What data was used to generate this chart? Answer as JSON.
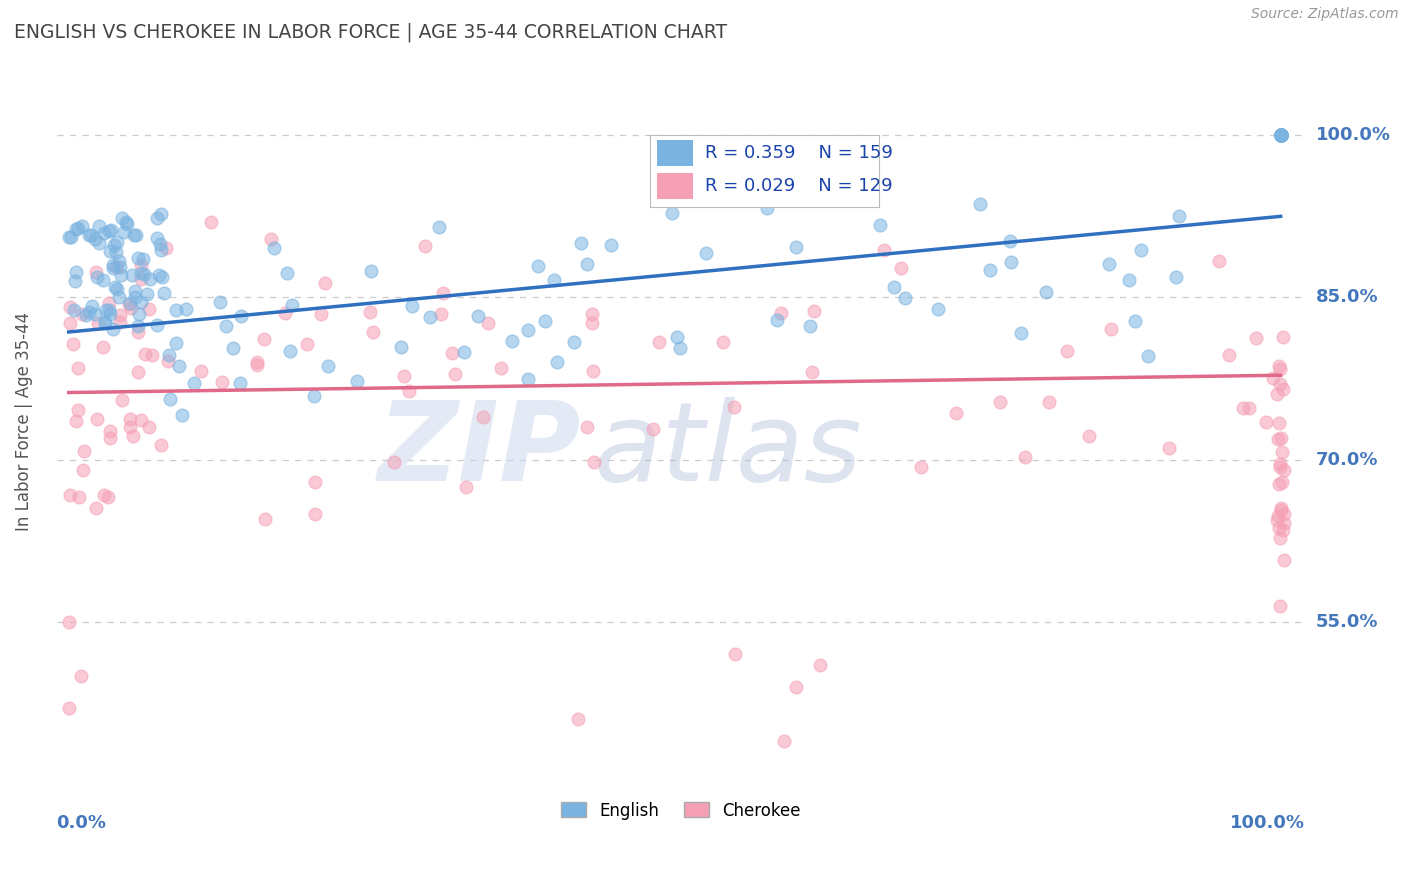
{
  "title": "ENGLISH VS CHEROKEE IN LABOR FORCE | AGE 35-44 CORRELATION CHART",
  "source": "Source: ZipAtlas.com",
  "ylabel": "In Labor Force | Age 35-44",
  "english_R": 0.359,
  "english_N": 159,
  "cherokee_R": 0.029,
  "cherokee_N": 129,
  "english_color": "#7ab3e0",
  "cherokee_color": "#f5a0b5",
  "english_line_color": "#3070c0",
  "cherokee_line_color": "#e06888",
  "grid_color": "#cccccc",
  "background_color": "#ffffff",
  "title_color": "#444444",
  "axis_label_color": "#4477bb",
  "ytick_values": [
    0.55,
    0.7,
    0.85,
    1.0
  ],
  "ytick_labels": [
    "55.0%",
    "70.0%",
    "85.0%",
    "100.0%"
  ],
  "xlim": [
    -0.01,
    1.02
  ],
  "ylim": [
    0.4,
    1.07
  ],
  "eng_trend_y0": 0.818,
  "eng_trend_y1": 0.925,
  "cher_trend_y0": 0.762,
  "cher_trend_y1": 0.778
}
